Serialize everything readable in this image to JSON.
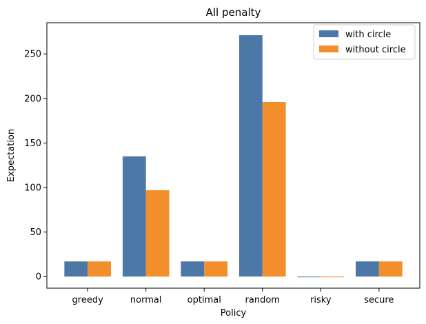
{
  "chart_data": {
    "type": "bar",
    "title": "All penalty",
    "xlabel": "Policy",
    "ylabel": "Expectation",
    "categories": [
      "greedy",
      "normal",
      "optimal",
      "random",
      "risky",
      "secure"
    ],
    "series": [
      {
        "name": "with circle",
        "values": [
          17,
          135,
          17,
          271,
          -0.5,
          17
        ],
        "color": "#4c78a8"
      },
      {
        "name": "without circle",
        "values": [
          17,
          97,
          17,
          196,
          -0.5,
          17
        ],
        "color": "#f28e2b"
      }
    ],
    "ylim": [
      -13,
      285
    ],
    "yticks": [
      0,
      50,
      100,
      150,
      200,
      250
    ],
    "grid": false,
    "legend_position": "top-right"
  }
}
